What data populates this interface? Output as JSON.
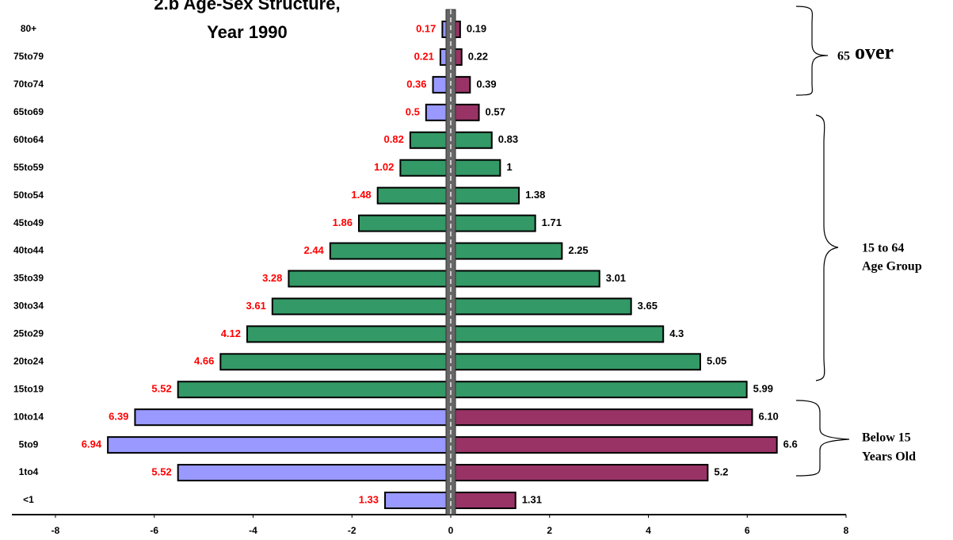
{
  "chart_data": {
    "type": "pyramid",
    "title": [
      "2.b Age-Sex Structure,",
      "Year 1990"
    ],
    "categories": [
      "80+",
      "75to79",
      "70to74",
      "65to69",
      "60to64",
      "55to59",
      "50to54",
      "45to49",
      "40to44",
      "35to39",
      "30to34",
      "25to29",
      "20to24",
      "15to19",
      "10to14",
      "5to9",
      "1to4",
      "<1"
    ],
    "series": [
      {
        "values": [
          -0.17,
          -0.21,
          -0.36,
          -0.5,
          -0.82,
          -1.02,
          -1.48,
          -1.86,
          -2.44,
          -3.28,
          -3.61,
          -4.12,
          -4.66,
          -5.52,
          -6.39,
          -6.94,
          -5.52,
          -1.33
        ],
        "value_labels": [
          "0.17",
          "0.21",
          "0.36",
          "0.5",
          "0.82",
          "1.02",
          "1.48",
          "1.86",
          "2.44",
          "3.28",
          "3.61",
          "4.12",
          "4.66",
          "5.52",
          "6.39",
          "6.94",
          "5.52",
          "1.33"
        ],
        "label_color": "#ff0000",
        "colors": [
          "#9999ff",
          "#9999ff",
          "#9999ff",
          "#9999ff",
          "#339966",
          "#339966",
          "#339966",
          "#339966",
          "#339966",
          "#339966",
          "#339966",
          "#339966",
          "#339966",
          "#339966",
          "#9999ff",
          "#9999ff",
          "#9999ff",
          "#9999ff"
        ]
      },
      {
        "values": [
          0.19,
          0.22,
          0.39,
          0.57,
          0.83,
          1,
          1.38,
          1.71,
          2.25,
          3.01,
          3.65,
          4.3,
          5.05,
          5.99,
          6.1,
          6.6,
          5.2,
          1.31
        ],
        "value_labels": [
          "0.19",
          "0.22",
          "0.39",
          "0.57",
          "0.83",
          "1",
          "1.38",
          "1.71",
          "2.25",
          "3.01",
          "3.65",
          "4.3",
          "5.05",
          "5.99",
          "6.10",
          "6.6",
          "5.2",
          "1.31"
        ],
        "label_color": "#000000",
        "colors": [
          "#993366",
          "#993366",
          "#993366",
          "#993366",
          "#339966",
          "#339966",
          "#339966",
          "#339966",
          "#339966",
          "#339966",
          "#339966",
          "#339966",
          "#339966",
          "#339966",
          "#993366",
          "#993366",
          "#993366",
          "#993366"
        ]
      }
    ],
    "xlim": [
      -8,
      8
    ],
    "xticks": [
      -8,
      -6,
      -4,
      -2,
      0,
      2,
      4,
      6,
      8
    ],
    "annotations": [
      {
        "lines": [
          "65",
          "over"
        ]
      },
      {
        "lines": [
          "15 to 64",
          "Age Group"
        ]
      },
      {
        "lines": [
          "Below 15",
          "Years Old"
        ]
      }
    ]
  }
}
